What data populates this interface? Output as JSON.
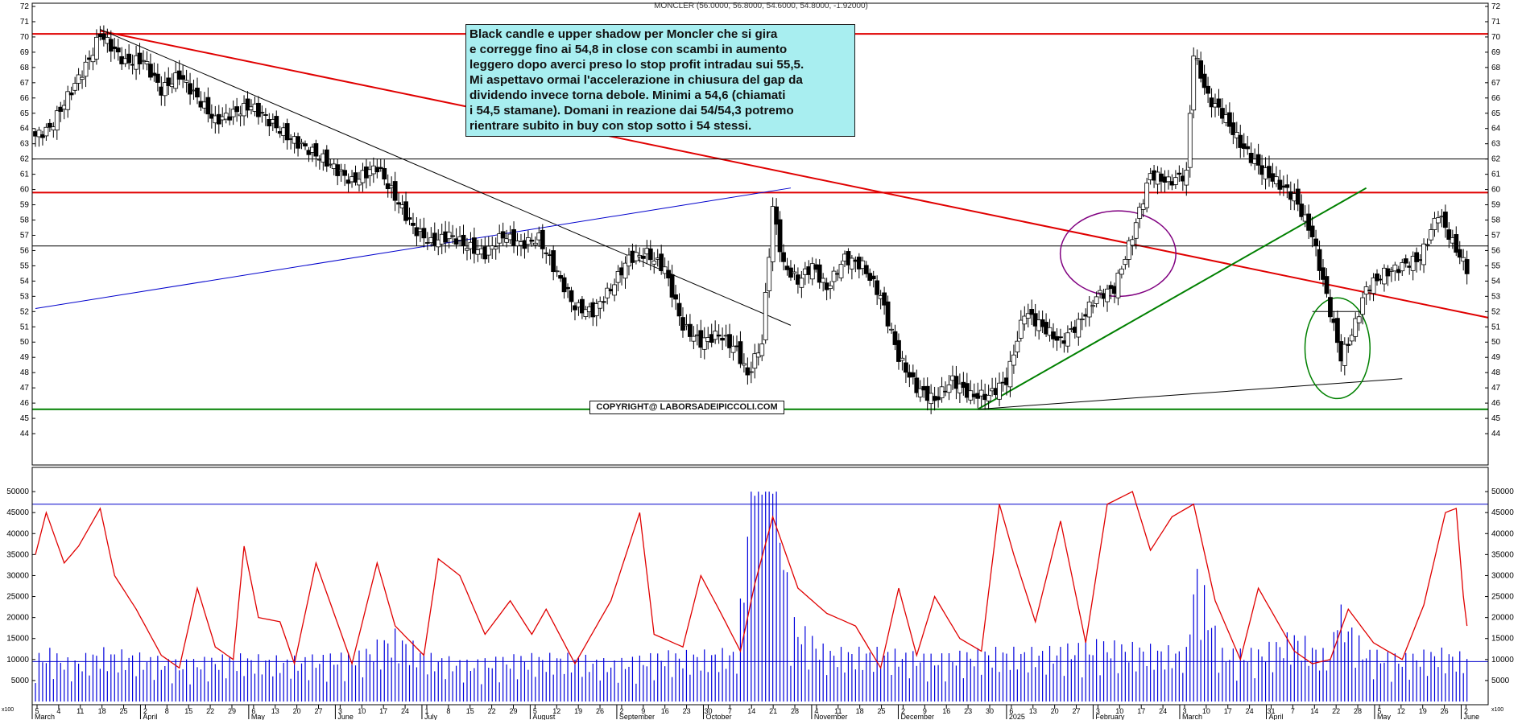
{
  "header": {
    "title": "MONCLER (56.0000, 56.8000, 54.6000, 54.8000, -1.92000)"
  },
  "annotations": {
    "note_text": "Black candle e upper shadow per Moncler che si gira\ne corregge fino ai 54,8 in close con scambi in aumento\nleggero dopo averci preso lo stop profit intradau sui 55,5.\nMi aspettavo ormai l'accelerazione in chiusura del gap da\ndividendo invece torna debole. Minimi a 54,6 (chiamati\ni 54,5 stamane). Domani in reazione dai 54/54,3 potremo\nrientrare subito in buy con stop sotto i 54 stessi.",
    "copyright": "COPYRIGHT@ LABORSADEIPICCOLI.COM"
  },
  "colors": {
    "up": "#ffffff",
    "down": "#000000",
    "resistance": "#e00000",
    "support": "#008000",
    "trend_blue": "#0000cc",
    "oscillator": "#e00000",
    "volume": "#0000dd",
    "note_bg": "#a8eef0"
  },
  "chart_data": [
    {
      "type": "candlestick",
      "title": "MONCLER (56.0000, 56.8000, 54.6000, 54.8000, -1.92000)",
      "ylim": [
        43,
        72
      ],
      "y_ticks": [
        "44",
        "45",
        "46",
        "47",
        "48",
        "49",
        "50",
        "51",
        "52",
        "53",
        "54",
        "55",
        "56",
        "57",
        "58",
        "59",
        "60",
        "61",
        "62",
        "63",
        "64",
        "65",
        "66",
        "67",
        "68",
        "69",
        "70",
        "71",
        "72"
      ],
      "x_ticks": [
        {
          "day": "5",
          "month": "March"
        },
        {
          "day": "4"
        },
        {
          "day": "11"
        },
        {
          "day": "18"
        },
        {
          "day": "25"
        },
        {
          "day": "2",
          "month": "April"
        },
        {
          "day": "8"
        },
        {
          "day": "15"
        },
        {
          "day": "22"
        },
        {
          "day": "29"
        },
        {
          "day": "6",
          "month": "May"
        },
        {
          "day": "13"
        },
        {
          "day": "20"
        },
        {
          "day": "27"
        },
        {
          "day": "3",
          "month": "June"
        },
        {
          "day": "10"
        },
        {
          "day": "17"
        },
        {
          "day": "24"
        },
        {
          "day": "1",
          "month": "July"
        },
        {
          "day": "8"
        },
        {
          "day": "15"
        },
        {
          "day": "22"
        },
        {
          "day": "29"
        },
        {
          "day": "5",
          "month": "August"
        },
        {
          "day": "12"
        },
        {
          "day": "19"
        },
        {
          "day": "26"
        },
        {
          "day": "2",
          "month": "September"
        },
        {
          "day": "9"
        },
        {
          "day": "16"
        },
        {
          "day": "23"
        },
        {
          "day": "30",
          "month": "October"
        },
        {
          "day": "7"
        },
        {
          "day": "14"
        },
        {
          "day": "21"
        },
        {
          "day": "28"
        },
        {
          "day": "4",
          "month": "November"
        },
        {
          "day": "11"
        },
        {
          "day": "18"
        },
        {
          "day": "25"
        },
        {
          "day": "2",
          "month": "December"
        },
        {
          "day": "9"
        },
        {
          "day": "16"
        },
        {
          "day": "23"
        },
        {
          "day": "30"
        },
        {
          "day": "6",
          "month": "2025"
        },
        {
          "day": "13"
        },
        {
          "day": "20"
        },
        {
          "day": "27"
        },
        {
          "day": "3",
          "month": "February"
        },
        {
          "day": "10"
        },
        {
          "day": "17"
        },
        {
          "day": "24"
        },
        {
          "day": "3",
          "month": "March"
        },
        {
          "day": "10"
        },
        {
          "day": "17"
        },
        {
          "day": "24"
        },
        {
          "day": "31",
          "month": "April"
        },
        {
          "day": "7"
        },
        {
          "day": "14"
        },
        {
          "day": "22"
        },
        {
          "day": "28"
        },
        {
          "day": "5",
          "month": "May"
        },
        {
          "day": "12"
        },
        {
          "day": "19"
        },
        {
          "day": "26"
        },
        {
          "day": "2",
          "month": "June"
        }
      ],
      "bars": 303,
      "close_path": [
        [
          0,
          63.5
        ],
        [
          4,
          64
        ],
        [
          10,
          66.5
        ],
        [
          15,
          68.5
        ],
        [
          18,
          70.2
        ],
        [
          25,
          68.3
        ],
        [
          30,
          68.5
        ],
        [
          35,
          66.5
        ],
        [
          40,
          67.5
        ],
        [
          50,
          64.5
        ],
        [
          60,
          65.5
        ],
        [
          70,
          63.5
        ],
        [
          80,
          62
        ],
        [
          88,
          60.5
        ],
        [
          95,
          61.5
        ],
        [
          100,
          59.5
        ],
        [
          105,
          57.5
        ],
        [
          110,
          56.5
        ],
        [
          115,
          57
        ],
        [
          120,
          56.3
        ],
        [
          125,
          55.8
        ],
        [
          130,
          57
        ],
        [
          135,
          56.4
        ],
        [
          140,
          56.8
        ],
        [
          145,
          54.5
        ],
        [
          150,
          52.3
        ],
        [
          155,
          52
        ],
        [
          160,
          53.5
        ],
        [
          165,
          55.5
        ],
        [
          170,
          55.8
        ],
        [
          175,
          54.8
        ],
        [
          180,
          51
        ],
        [
          185,
          50
        ],
        [
          190,
          50.5
        ],
        [
          195,
          49.5
        ],
        [
          198,
          47.8
        ],
        [
          202,
          50
        ],
        [
          205,
          58.8
        ],
        [
          208,
          55
        ],
        [
          212,
          54
        ],
        [
          216,
          55
        ],
        [
          220,
          53.5
        ],
        [
          225,
          55.5
        ],
        [
          230,
          55
        ],
        [
          235,
          53
        ],
        [
          240,
          49
        ],
        [
          245,
          47
        ],
        [
          250,
          46.2
        ],
        [
          255,
          47.5
        ],
        [
          260,
          46.5
        ],
        [
          265,
          46.5
        ],
        [
          270,
          47.5
        ],
        [
          275,
          52
        ],
        [
          280,
          51
        ],
        [
          285,
          50
        ],
        [
          290,
          51.2
        ],
        [
          295,
          53
        ],
        [
          300,
          53.5
        ]
      ],
      "close_path_2025": [
        [
          305,
          57
        ],
        [
          310,
          61
        ],
        [
          315,
          60.5
        ],
        [
          320,
          61
        ],
        [
          322,
          69
        ],
        [
          326,
          66
        ],
        [
          330,
          65
        ],
        [
          335,
          63
        ],
        [
          340,
          61.5
        ],
        [
          345,
          60.5
        ],
        [
          350,
          59.5
        ],
        [
          355,
          57
        ],
        [
          360,
          52
        ],
        [
          363,
          49
        ],
        [
          366,
          50.5
        ],
        [
          370,
          53.5
        ],
        [
          375,
          54.5
        ],
        [
          380,
          55
        ],
        [
          385,
          55.5
        ],
        [
          390,
          58.5
        ],
        [
          394,
          56.5
        ],
        [
          398,
          54.8
        ]
      ],
      "trendlines": [
        {
          "color": "resistance",
          "from": [
            18,
            70.4
          ],
          "to": [
            420,
            51.6
          ]
        },
        {
          "color": "resistance",
          "y": 70.2
        },
        {
          "color": "resistance",
          "y": 59.8
        },
        {
          "color": "black",
          "y": 62
        },
        {
          "color": "black",
          "y": 56.3
        },
        {
          "color": "support",
          "y": 45.6
        },
        {
          "color": "black",
          "from": [
            18,
            70.5
          ],
          "to": [
            210,
            51.1
          ]
        },
        {
          "color": "trend_blue",
          "from": [
            0,
            52.2
          ],
          "to": [
            210,
            60.1
          ]
        },
        {
          "color": "support",
          "from": [
            262,
            45.6
          ],
          "to": [
            370,
            60.1
          ]
        },
        {
          "color": "black",
          "from": [
            262,
            45.6
          ],
          "to": [
            380,
            47.6
          ]
        },
        {
          "color": "black",
          "from": [
            355,
            52
          ],
          "to": [
            368,
            52
          ]
        }
      ],
      "ellipses": [
        {
          "color": "purple",
          "center": [
            301,
            55.8
          ],
          "rx": 16,
          "ry": 2.8
        },
        {
          "color": "support",
          "center": [
            362,
            49.6
          ],
          "rx": 9,
          "ry": 3.3
        }
      ]
    },
    {
      "type": "bar",
      "title": "Volume",
      "ylim": [
        0,
        55000
      ],
      "y_ticks": [
        "5000",
        "10000",
        "15000",
        "20000",
        "25000",
        "30000",
        "35000",
        "40000",
        "45000",
        "50000"
      ],
      "y_unit_label": "x100",
      "levels": [
        47000,
        9500
      ],
      "volume_path": [
        [
          0,
          8000
        ],
        [
          4,
          9000
        ],
        [
          10,
          7000
        ],
        [
          18,
          9000
        ],
        [
          25,
          8500
        ],
        [
          40,
          7000
        ],
        [
          55,
          8000
        ],
        [
          70,
          7500
        ],
        [
          80,
          8000
        ],
        [
          90,
          8500
        ],
        [
          100,
          12000
        ],
        [
          110,
          8000
        ],
        [
          120,
          7000
        ],
        [
          135,
          8000
        ],
        [
          150,
          8000
        ],
        [
          160,
          7000
        ],
        [
          175,
          8500
        ],
        [
          185,
          8500
        ],
        [
          195,
          9000
        ],
        [
          200,
          49000
        ],
        [
          205,
          49500
        ],
        [
          210,
          15000
        ],
        [
          220,
          9000
        ],
        [
          235,
          9000
        ],
        [
          250,
          8000
        ],
        [
          265,
          9000
        ],
        [
          280,
          9000
        ],
        [
          295,
          10500
        ],
        [
          310,
          9500
        ],
        [
          320,
          9000
        ],
        [
          322,
          25500
        ],
        [
          330,
          9000
        ],
        [
          340,
          9000
        ],
        [
          350,
          12000
        ],
        [
          360,
          8000
        ],
        [
          362,
          17000
        ],
        [
          370,
          9000
        ],
        [
          380,
          8000
        ],
        [
          390,
          9000
        ],
        [
          398,
          8000
        ]
      ],
      "oscillator_path": [
        [
          0,
          35000
        ],
        [
          3,
          45000
        ],
        [
          8,
          33000
        ],
        [
          12,
          37000
        ],
        [
          18,
          46000
        ],
        [
          22,
          30000
        ],
        [
          28,
          22000
        ],
        [
          35,
          11000
        ],
        [
          40,
          8000
        ],
        [
          45,
          27000
        ],
        [
          50,
          13000
        ],
        [
          55,
          10000
        ],
        [
          58,
          37000
        ],
        [
          62,
          20000
        ],
        [
          68,
          19000
        ],
        [
          72,
          9000
        ],
        [
          78,
          33000
        ],
        [
          83,
          21000
        ],
        [
          88,
          9000
        ],
        [
          95,
          33000
        ],
        [
          100,
          18000
        ],
        [
          108,
          11000
        ],
        [
          112,
          34000
        ],
        [
          118,
          30000
        ],
        [
          125,
          16000
        ],
        [
          132,
          24000
        ],
        [
          138,
          16000
        ],
        [
          142,
          22000
        ],
        [
          150,
          9000
        ],
        [
          160,
          24000
        ],
        [
          168,
          45000
        ],
        [
          172,
          16000
        ],
        [
          180,
          13000
        ],
        [
          185,
          30000
        ],
        [
          190,
          22000
        ],
        [
          196,
          12000
        ],
        [
          200,
          28000
        ],
        [
          205,
          44000
        ],
        [
          212,
          27000
        ],
        [
          220,
          21000
        ],
        [
          228,
          18000
        ],
        [
          235,
          8000
        ],
        [
          240,
          27000
        ],
        [
          245,
          11000
        ],
        [
          250,
          25000
        ],
        [
          257,
          15000
        ],
        [
          263,
          12000
        ],
        [
          268,
          47000
        ],
        [
          272,
          35000
        ],
        [
          278,
          19000
        ],
        [
          285,
          43000
        ],
        [
          292,
          14000
        ],
        [
          298,
          47000
        ],
        [
          305,
          50000
        ],
        [
          310,
          36000
        ],
        [
          316,
          44000
        ],
        [
          322,
          47000
        ],
        [
          328,
          24000
        ],
        [
          335,
          10000
        ],
        [
          340,
          27000
        ],
        [
          346,
          18000
        ],
        [
          350,
          12000
        ],
        [
          355,
          9000
        ],
        [
          360,
          10000
        ],
        [
          365,
          22000
        ],
        [
          372,
          14000
        ],
        [
          380,
          10000
        ],
        [
          386,
          23000
        ],
        [
          392,
          45000
        ],
        [
          395,
          46000
        ],
        [
          397,
          25000
        ],
        [
          398,
          18000
        ]
      ]
    }
  ]
}
